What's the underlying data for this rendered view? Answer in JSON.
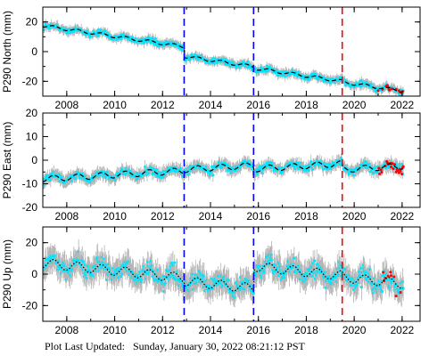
{
  "footer": {
    "label": "Plot Last Updated:",
    "timestamp": "Sunday, January 30, 2022 08:21:12 PST"
  },
  "chart_data": [
    {
      "type": "scatter",
      "station": "P290",
      "ylabel": "P290 North (mm)",
      "xlim": [
        2007.0,
        2022.75
      ],
      "ylim": [
        -30,
        30
      ],
      "xticks": [
        2008,
        2010,
        2012,
        2014,
        2016,
        2018,
        2020,
        2022
      ],
      "yticks": [
        -20,
        0,
        20
      ],
      "series": [
        {
          "role": "daily-position",
          "color": "#00e5ff",
          "error_bar_color": "#b4b4b4",
          "noise_mm": 1.8
        },
        {
          "role": "model",
          "color": "#000000",
          "style": "dashed"
        },
        {
          "role": "rapid-solution",
          "color": "#ff0000"
        }
      ],
      "model": {
        "start_value": 17.5,
        "trend_mm_per_yr": -2.4,
        "seasonal_amp": 1.0,
        "steps": [
          {
            "x": 2012.9,
            "dy": -6.5
          },
          {
            "x": 2015.8,
            "dy": -1.0
          },
          {
            "x": 2019.5,
            "dy": -0.5
          }
        ]
      },
      "offsets": [
        {
          "x": 2012.9,
          "color": "#0000ff"
        },
        {
          "x": 2015.8,
          "color": "#0000ff"
        },
        {
          "x": 2019.5,
          "color": "#ff0000"
        }
      ]
    },
    {
      "type": "scatter",
      "station": "P290",
      "ylabel": "P290 East (mm)",
      "xlim": [
        2007.0,
        2022.75
      ],
      "ylim": [
        -20,
        20
      ],
      "xticks": [
        2008,
        2010,
        2012,
        2014,
        2016,
        2018,
        2020,
        2022
      ],
      "yticks": [
        -20,
        -10,
        0,
        10,
        20
      ],
      "series": [
        {
          "role": "daily-position",
          "color": "#00e5ff",
          "error_bar_color": "#b4b4b4",
          "noise_mm": 1.6
        },
        {
          "role": "model",
          "color": "#000000",
          "style": "dashed"
        },
        {
          "role": "rapid-solution",
          "color": "#ff0000"
        }
      ],
      "model": {
        "start_value": -8.0,
        "trend_mm_per_yr": 0.6,
        "seasonal_amp": 1.3,
        "steps": [
          {
            "x": 2012.9,
            "dy": 0.5
          },
          {
            "x": 2015.8,
            "dy": -1.5
          },
          {
            "x": 2019.5,
            "dy": -2.5
          }
        ]
      },
      "offsets": [
        {
          "x": 2012.9,
          "color": "#0000ff"
        },
        {
          "x": 2015.8,
          "color": "#0000ff"
        },
        {
          "x": 2019.5,
          "color": "#ff0000"
        }
      ]
    },
    {
      "type": "scatter",
      "station": "P290",
      "ylabel": "P290 Up (mm)",
      "xlim": [
        2007.0,
        2022.75
      ],
      "ylim": [
        -30,
        30
      ],
      "xticks": [
        2008,
        2010,
        2012,
        2014,
        2016,
        2018,
        2020,
        2022
      ],
      "yticks": [
        -20,
        0,
        20
      ],
      "series": [
        {
          "role": "daily-position",
          "color": "#00e5ff",
          "error_bar_color": "#b4b4b4",
          "noise_mm": 5.0
        },
        {
          "role": "model",
          "color": "#000000",
          "style": "dotted"
        },
        {
          "role": "rapid-solution",
          "color": "#ff0000"
        }
      ],
      "model": {
        "start_value": 7.0,
        "trend_mm_per_yr": -1.6,
        "seasonal_amp": 3.0,
        "steps": [
          {
            "x": 2012.9,
            "dy": -2.0
          },
          {
            "x": 2015.8,
            "dy": 14.0
          },
          {
            "x": 2019.5,
            "dy": -1.0
          }
        ]
      },
      "offsets": [
        {
          "x": 2012.9,
          "color": "#0000ff"
        },
        {
          "x": 2015.8,
          "color": "#0000ff"
        },
        {
          "x": 2019.5,
          "color": "#ff0000"
        }
      ]
    }
  ]
}
